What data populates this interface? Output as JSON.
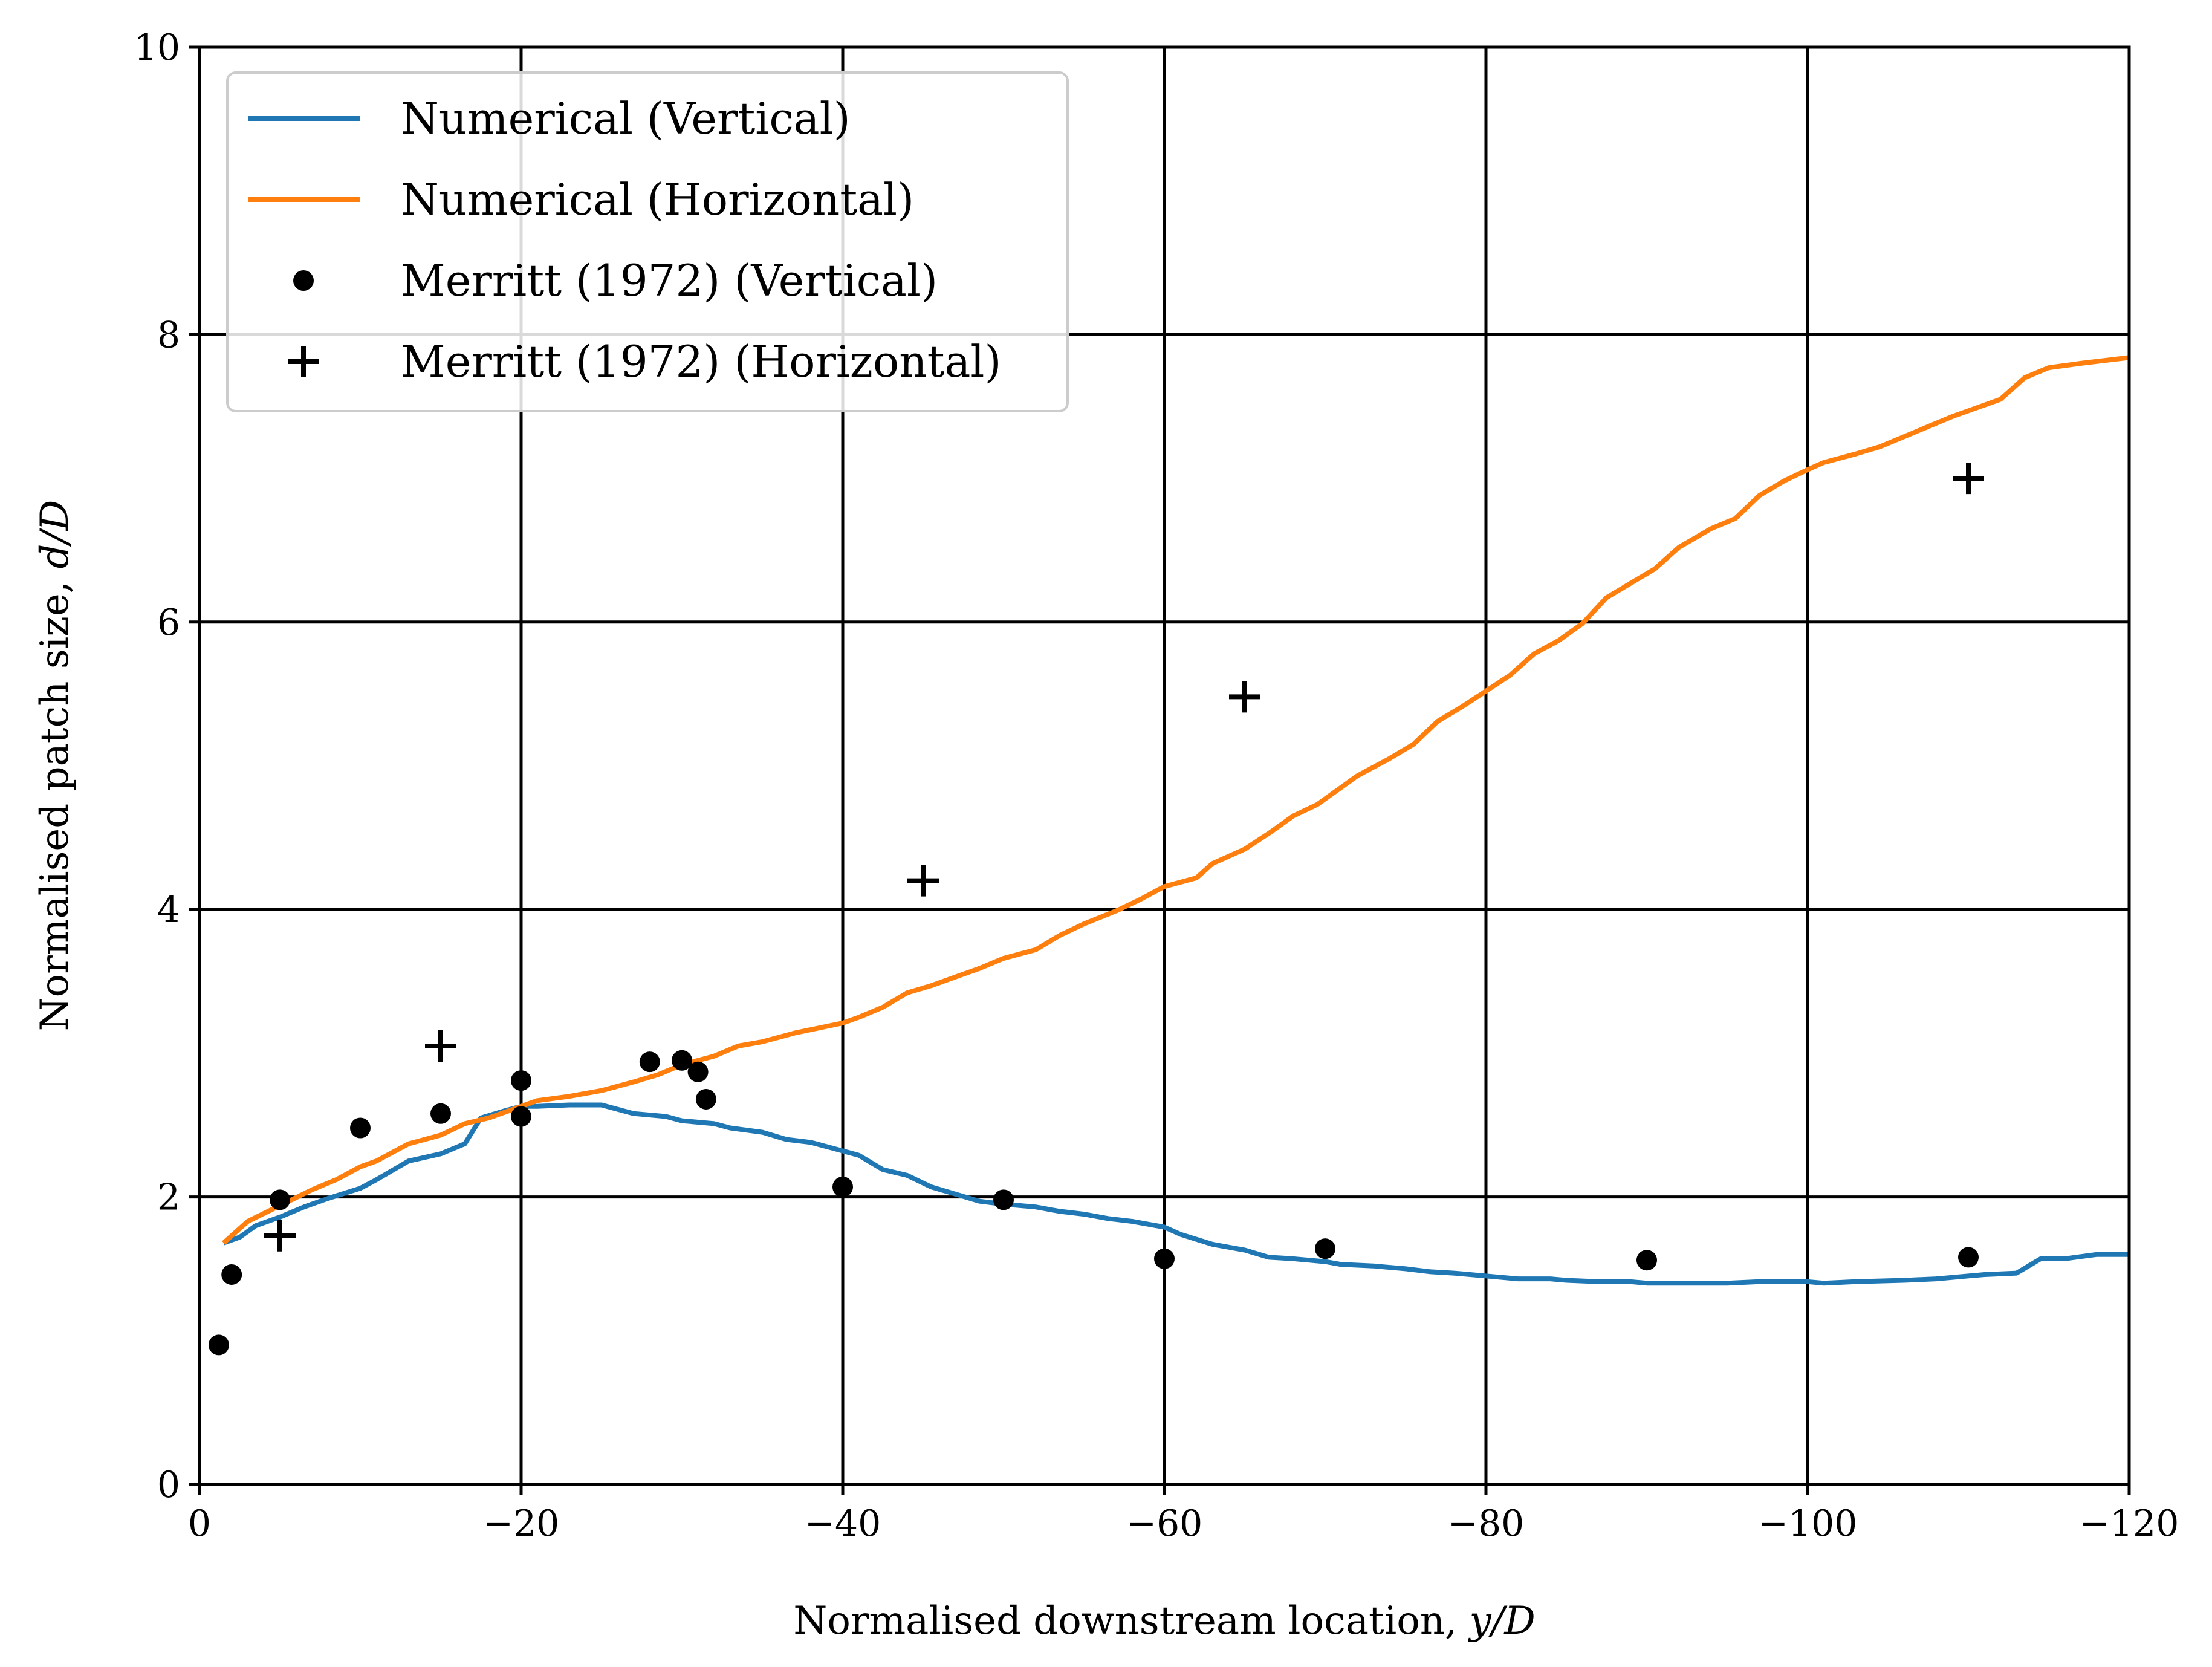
{
  "chart_data": {
    "type": "line",
    "xlabel": "Normalised downstream location, y/D",
    "ylabel": "Normalised patch size, d/D",
    "xlabel_prefix": "Normalised downstream location, ",
    "xlabel_var": "y/D",
    "ylabel_prefix": "Normalised patch size, ",
    "ylabel_var": "d/D",
    "xlim": [
      0,
      -120
    ],
    "ylim": [
      0,
      10
    ],
    "x_ticks": [
      0,
      -20,
      -40,
      -60,
      -80,
      -100,
      -120
    ],
    "x_tick_labels": [
      "0",
      "−20",
      "−40",
      "−60",
      "−80",
      "−100",
      "−120"
    ],
    "y_ticks": [
      0,
      2,
      4,
      6,
      8,
      10
    ],
    "y_tick_labels": [
      "0",
      "2",
      "4",
      "6",
      "8",
      "10"
    ],
    "grid": true,
    "legend_position": "top-left",
    "series": [
      {
        "name": "Numerical (Vertical)",
        "style": "line",
        "color": "#1f77b4",
        "points": [
          [
            -1.5,
            1.68
          ],
          [
            -2.5,
            1.72
          ],
          [
            -3.5,
            1.8
          ],
          [
            -5,
            1.86
          ],
          [
            -6.5,
            1.93
          ],
          [
            -8,
            1.99
          ],
          [
            -10,
            2.06
          ],
          [
            -11,
            2.12
          ],
          [
            -13,
            2.25
          ],
          [
            -15,
            2.3
          ],
          [
            -16.5,
            2.37
          ],
          [
            -17.5,
            2.55
          ],
          [
            -19,
            2.6
          ],
          [
            -20,
            2.63
          ],
          [
            -21,
            2.63
          ],
          [
            -23,
            2.64
          ],
          [
            -25,
            2.64
          ],
          [
            -27,
            2.58
          ],
          [
            -29,
            2.56
          ],
          [
            -30,
            2.53
          ],
          [
            -32,
            2.51
          ],
          [
            -33,
            2.48
          ],
          [
            -35,
            2.45
          ],
          [
            -36.5,
            2.4
          ],
          [
            -38,
            2.38
          ],
          [
            -40,
            2.32
          ],
          [
            -41,
            2.29
          ],
          [
            -42.5,
            2.19
          ],
          [
            -44,
            2.15
          ],
          [
            -45.5,
            2.07
          ],
          [
            -47,
            2.02
          ],
          [
            -48.5,
            1.97
          ],
          [
            -50,
            1.95
          ],
          [
            -52,
            1.93
          ],
          [
            -53.5,
            1.9
          ],
          [
            -55,
            1.88
          ],
          [
            -56.5,
            1.85
          ],
          [
            -58,
            1.83
          ],
          [
            -60,
            1.79
          ],
          [
            -61,
            1.74
          ],
          [
            -63,
            1.67
          ],
          [
            -65,
            1.63
          ],
          [
            -66.5,
            1.58
          ],
          [
            -68,
            1.57
          ],
          [
            -70,
            1.55
          ],
          [
            -71,
            1.53
          ],
          [
            -73,
            1.52
          ],
          [
            -75,
            1.5
          ],
          [
            -76.5,
            1.48
          ],
          [
            -78,
            1.47
          ],
          [
            -80,
            1.45
          ],
          [
            -82,
            1.43
          ],
          [
            -84,
            1.43
          ],
          [
            -85,
            1.42
          ],
          [
            -87,
            1.41
          ],
          [
            -89,
            1.41
          ],
          [
            -90,
            1.4
          ],
          [
            -92,
            1.4
          ],
          [
            -95,
            1.4
          ],
          [
            -97,
            1.41
          ],
          [
            -100,
            1.41
          ],
          [
            -101,
            1.4
          ],
          [
            -103,
            1.41
          ],
          [
            -106,
            1.42
          ],
          [
            -108,
            1.43
          ],
          [
            -110,
            1.45
          ],
          [
            -111,
            1.46
          ],
          [
            -113,
            1.47
          ],
          [
            -114.5,
            1.57
          ],
          [
            -116,
            1.57
          ],
          [
            -118,
            1.6
          ],
          [
            -120,
            1.6
          ]
        ]
      },
      {
        "name": "Numerical (Horizontal)",
        "style": "line",
        "color": "#ff7f0e",
        "points": [
          [
            -1.5,
            1.68
          ],
          [
            -3,
            1.83
          ],
          [
            -5,
            1.94
          ],
          [
            -7,
            2.05
          ],
          [
            -8.5,
            2.12
          ],
          [
            -10,
            2.21
          ],
          [
            -11,
            2.25
          ],
          [
            -13,
            2.37
          ],
          [
            -15,
            2.43
          ],
          [
            -16.5,
            2.51
          ],
          [
            -18,
            2.55
          ],
          [
            -20,
            2.63
          ],
          [
            -21,
            2.67
          ],
          [
            -23,
            2.7
          ],
          [
            -25,
            2.74
          ],
          [
            -27,
            2.8
          ],
          [
            -28.5,
            2.85
          ],
          [
            -30,
            2.92
          ],
          [
            -32,
            2.98
          ],
          [
            -33.5,
            3.05
          ],
          [
            -35,
            3.08
          ],
          [
            -37,
            3.14
          ],
          [
            -40,
            3.21
          ],
          [
            -41,
            3.25
          ],
          [
            -42.5,
            3.32
          ],
          [
            -44,
            3.42
          ],
          [
            -45.5,
            3.47
          ],
          [
            -47,
            3.53
          ],
          [
            -48.5,
            3.59
          ],
          [
            -50,
            3.66
          ],
          [
            -52,
            3.72
          ],
          [
            -53.5,
            3.82
          ],
          [
            -55,
            3.9
          ],
          [
            -57,
            3.99
          ],
          [
            -58.5,
            4.07
          ],
          [
            -60,
            4.16
          ],
          [
            -62,
            4.22
          ],
          [
            -63,
            4.32
          ],
          [
            -65,
            4.42
          ],
          [
            -66.5,
            4.53
          ],
          [
            -68,
            4.65
          ],
          [
            -69.5,
            4.73
          ],
          [
            -71,
            4.85
          ],
          [
            -72,
            4.93
          ],
          [
            -74,
            5.05
          ],
          [
            -75.5,
            5.15
          ],
          [
            -77,
            5.31
          ],
          [
            -78.5,
            5.41
          ],
          [
            -80,
            5.52
          ],
          [
            -81.5,
            5.63
          ],
          [
            -83,
            5.78
          ],
          [
            -84.5,
            5.87
          ],
          [
            -86,
            5.99
          ],
          [
            -87.5,
            6.17
          ],
          [
            -89,
            6.27
          ],
          [
            -90.5,
            6.37
          ],
          [
            -92,
            6.52
          ],
          [
            -94,
            6.65
          ],
          [
            -95.5,
            6.72
          ],
          [
            -97,
            6.88
          ],
          [
            -98.5,
            6.98
          ],
          [
            -100,
            7.06
          ],
          [
            -101,
            7.11
          ],
          [
            -103,
            7.17
          ],
          [
            -104.5,
            7.22
          ],
          [
            -106,
            7.29
          ],
          [
            -107.5,
            7.36
          ],
          [
            -109,
            7.43
          ],
          [
            -110.5,
            7.49
          ],
          [
            -112,
            7.55
          ],
          [
            -113.5,
            7.7
          ],
          [
            -115,
            7.77
          ],
          [
            -117,
            7.8
          ],
          [
            -120,
            7.84
          ]
        ]
      },
      {
        "name": "Merritt (1972) (Vertical)",
        "style": "dot",
        "color": "#000000",
        "points": [
          [
            -1.2,
            0.97
          ],
          [
            -2,
            1.46
          ],
          [
            -5,
            1.98
          ],
          [
            -10,
            2.48
          ],
          [
            -15,
            2.58
          ],
          [
            -20,
            2.81
          ],
          [
            -20,
            2.56
          ],
          [
            -28,
            2.94
          ],
          [
            -30,
            2.95
          ],
          [
            -31,
            2.87
          ],
          [
            -31.5,
            2.68
          ],
          [
            -40,
            2.07
          ],
          [
            -50,
            1.98
          ],
          [
            -60,
            1.57
          ],
          [
            -70,
            1.64
          ],
          [
            -90,
            1.56
          ],
          [
            -110,
            1.58
          ]
        ]
      },
      {
        "name": "Merritt (1972) (Horizontal)",
        "style": "plus",
        "color": "#000000",
        "points": [
          [
            -5,
            1.73
          ],
          [
            -15,
            3.05
          ],
          [
            -45,
            4.2
          ],
          [
            -65,
            5.48
          ],
          [
            -110,
            7.0
          ]
        ]
      }
    ]
  }
}
